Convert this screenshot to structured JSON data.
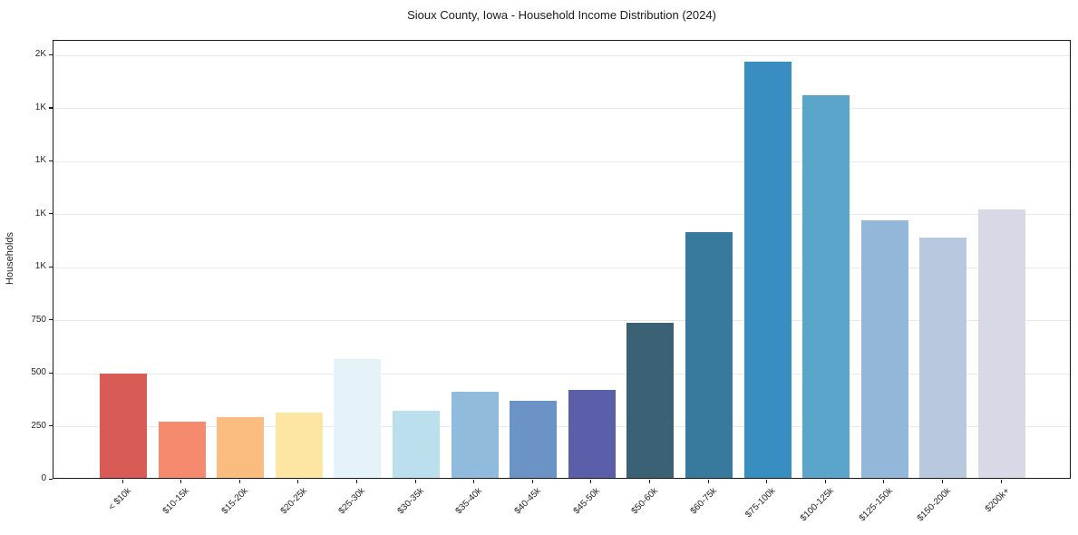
{
  "title": "Sioux County, Iowa - Household Income Distribution (2024)",
  "chart_data": {
    "type": "bar",
    "title": "Sioux County, Iowa - Household Income Distribution (2024)",
    "xlabel": "",
    "ylabel": "Households",
    "categories": [
      "< $10k",
      "$10-15k",
      "$15-20k",
      "$20-25k",
      "$25-30k",
      "$30-35k",
      "$35-40k",
      "$40-45k",
      "$45-50k",
      "$50-60k",
      "$60-75k",
      "$75-100k",
      "$100-125k",
      "$125-150k",
      "$150-200k",
      "$200k+"
    ],
    "values": [
      490,
      265,
      285,
      310,
      560,
      315,
      405,
      365,
      415,
      730,
      1160,
      1965,
      1805,
      1215,
      1135,
      1265
    ],
    "bar_colors": [
      "#d85c55",
      "#f58a6e",
      "#fbbd7f",
      "#fde5a4",
      "#e5f2f8",
      "#bcdfee",
      "#90bbdc",
      "#6b93c6",
      "#5b5fa9",
      "#3a6174",
      "#38799e",
      "#388dc1",
      "#5ba5ca",
      "#92b7d9",
      "#b8c8df",
      "#d8d9e7"
    ],
    "ylim": [
      0,
      2070
    ],
    "yticks": [
      {
        "value": 0,
        "label": "0"
      },
      {
        "value": 250,
        "label": "250"
      },
      {
        "value": 500,
        "label": "500"
      },
      {
        "value": 750,
        "label": "750"
      },
      {
        "value": 1000,
        "label": "1K"
      },
      {
        "value": 1250,
        "label": "1K"
      },
      {
        "value": 1500,
        "label": "1K"
      },
      {
        "value": 1750,
        "label": "1K"
      },
      {
        "value": 2000,
        "label": "2K"
      }
    ],
    "grid": "horizontal",
    "legend": "none",
    "background_color": "#ffffff",
    "frame_color": "#1a1a1a",
    "gridline_color": "#e9e9ec"
  }
}
